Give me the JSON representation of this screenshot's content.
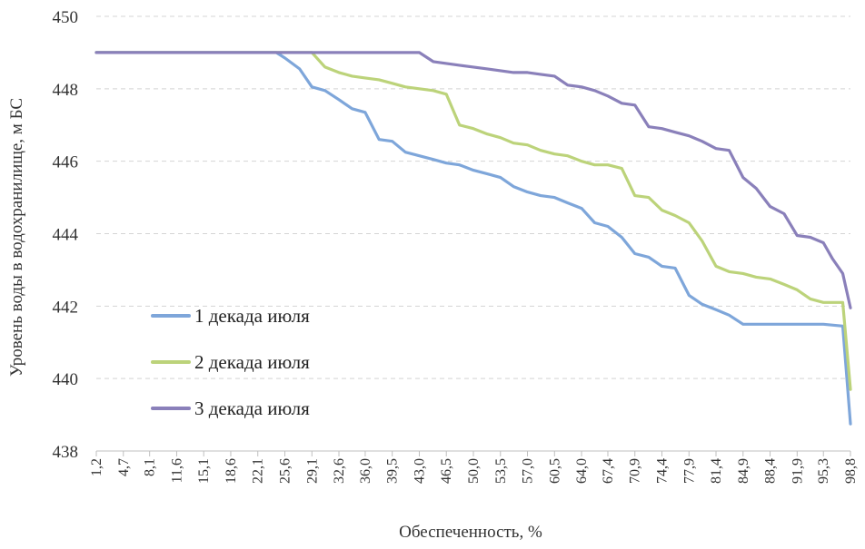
{
  "chart_data": {
    "type": "line",
    "title": "",
    "xlabel": "Обеспеченность, %",
    "ylabel": "Уровень воды в водохранилище, м БС",
    "ylim": [
      438,
      450
    ],
    "yticks": [
      "438",
      "440",
      "442",
      "444",
      "446",
      "448",
      "450"
    ],
    "grid": "horizontal dashed",
    "legend_position": "left-middle",
    "x": [
      "1,2",
      "4,7",
      "8,1",
      "11,6",
      "15,1",
      "18,6",
      "22,1",
      "25,6",
      "29,1",
      "32,6",
      "36,0",
      "39,5",
      "43,0",
      "46,5",
      "50,0",
      "53,5",
      "57,0",
      "60,5",
      "64,0",
      "67,4",
      "70,9",
      "74,4",
      "77,9",
      "81,4",
      "84,9",
      "88,4",
      "91,9",
      "95,3",
      "98,8"
    ],
    "series": [
      {
        "name": "1 декада июля",
        "color": "#7ea6da",
        "points": [
          [
            1.2,
            449.0
          ],
          [
            24.5,
            449.0
          ],
          [
            25.6,
            448.85
          ],
          [
            27.5,
            448.55
          ],
          [
            29.1,
            448.05
          ],
          [
            30.8,
            447.95
          ],
          [
            32.6,
            447.7
          ],
          [
            34.3,
            447.45
          ],
          [
            36.0,
            447.35
          ],
          [
            37.8,
            446.6
          ],
          [
            39.5,
            446.55
          ],
          [
            41.2,
            446.25
          ],
          [
            43.0,
            446.15
          ],
          [
            44.8,
            446.05
          ],
          [
            46.5,
            445.95
          ],
          [
            48.2,
            445.9
          ],
          [
            50.0,
            445.75
          ],
          [
            51.8,
            445.65
          ],
          [
            53.5,
            445.55
          ],
          [
            55.2,
            445.3
          ],
          [
            57.0,
            445.15
          ],
          [
            58.7,
            445.05
          ],
          [
            60.5,
            445.0
          ],
          [
            62.2,
            444.85
          ],
          [
            64.0,
            444.7
          ],
          [
            65.7,
            444.3
          ],
          [
            67.4,
            444.2
          ],
          [
            69.2,
            443.9
          ],
          [
            70.9,
            443.45
          ],
          [
            72.7,
            443.35
          ],
          [
            74.4,
            443.1
          ],
          [
            76.1,
            443.05
          ],
          [
            77.9,
            442.3
          ],
          [
            79.6,
            442.05
          ],
          [
            81.4,
            441.9
          ],
          [
            83.1,
            441.75
          ],
          [
            84.9,
            441.5
          ],
          [
            86.6,
            441.5
          ],
          [
            88.4,
            441.5
          ],
          [
            91.9,
            441.5
          ],
          [
            95.3,
            441.5
          ],
          [
            97.8,
            441.45
          ],
          [
            98.8,
            438.75
          ]
        ]
      },
      {
        "name": "2 декада июля",
        "color": "#bcd37a",
        "points": [
          [
            1.2,
            449.0
          ],
          [
            29.1,
            449.0
          ],
          [
            30.8,
            448.6
          ],
          [
            32.6,
            448.45
          ],
          [
            34.3,
            448.35
          ],
          [
            36.0,
            448.3
          ],
          [
            37.8,
            448.25
          ],
          [
            39.5,
            448.15
          ],
          [
            41.2,
            448.05
          ],
          [
            43.0,
            448.0
          ],
          [
            44.8,
            447.95
          ],
          [
            46.5,
            447.85
          ],
          [
            48.2,
            447.0
          ],
          [
            50.0,
            446.9
          ],
          [
            51.8,
            446.75
          ],
          [
            53.5,
            446.65
          ],
          [
            55.2,
            446.5
          ],
          [
            57.0,
            446.45
          ],
          [
            58.7,
            446.3
          ],
          [
            60.5,
            446.2
          ],
          [
            62.2,
            446.15
          ],
          [
            64.0,
            446.0
          ],
          [
            65.7,
            445.9
          ],
          [
            67.4,
            445.9
          ],
          [
            69.2,
            445.8
          ],
          [
            70.9,
            445.05
          ],
          [
            72.7,
            445.0
          ],
          [
            74.4,
            444.65
          ],
          [
            76.1,
            444.5
          ],
          [
            77.9,
            444.3
          ],
          [
            79.6,
            443.8
          ],
          [
            81.4,
            443.1
          ],
          [
            83.1,
            442.95
          ],
          [
            84.9,
            442.9
          ],
          [
            86.6,
            442.8
          ],
          [
            88.4,
            442.75
          ],
          [
            90.2,
            442.6
          ],
          [
            91.9,
            442.45
          ],
          [
            93.6,
            442.2
          ],
          [
            95.3,
            442.1
          ],
          [
            97.8,
            442.1
          ],
          [
            98.8,
            439.7
          ]
        ]
      },
      {
        "name": "3 декада июля",
        "color": "#8a80ba",
        "points": [
          [
            1.2,
            449.0
          ],
          [
            43.0,
            449.0
          ],
          [
            44.8,
            448.75
          ],
          [
            46.5,
            448.7
          ],
          [
            48.2,
            448.65
          ],
          [
            50.0,
            448.6
          ],
          [
            51.8,
            448.55
          ],
          [
            53.5,
            448.5
          ],
          [
            55.2,
            448.45
          ],
          [
            57.0,
            448.45
          ],
          [
            58.7,
            448.4
          ],
          [
            60.5,
            448.35
          ],
          [
            62.2,
            448.1
          ],
          [
            64.0,
            448.05
          ],
          [
            65.7,
            447.95
          ],
          [
            67.4,
            447.8
          ],
          [
            69.2,
            447.6
          ],
          [
            70.9,
            447.55
          ],
          [
            72.7,
            446.95
          ],
          [
            74.4,
            446.9
          ],
          [
            76.1,
            446.8
          ],
          [
            77.9,
            446.7
          ],
          [
            79.6,
            446.55
          ],
          [
            81.4,
            446.35
          ],
          [
            83.1,
            446.3
          ],
          [
            84.9,
            445.55
          ],
          [
            86.6,
            445.25
          ],
          [
            88.4,
            444.75
          ],
          [
            90.2,
            444.55
          ],
          [
            91.9,
            443.95
          ],
          [
            93.6,
            443.9
          ],
          [
            95.3,
            443.75
          ],
          [
            96.5,
            443.3
          ],
          [
            97.8,
            442.9
          ],
          [
            98.8,
            441.95
          ]
        ]
      }
    ]
  }
}
